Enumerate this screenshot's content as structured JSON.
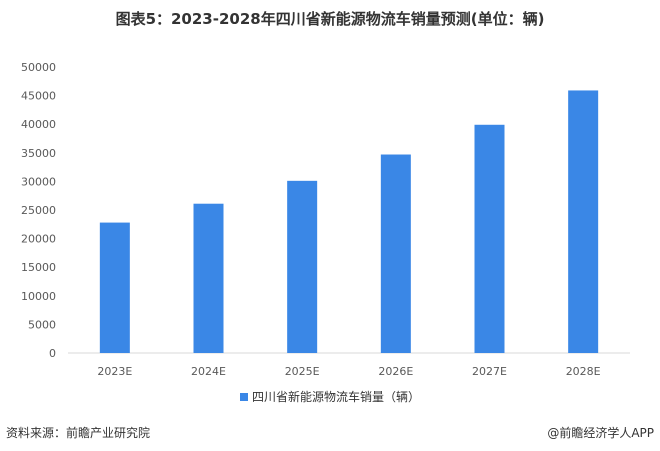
{
  "chart_data": {
    "type": "bar",
    "title": "图表5：2023-2028年四川省新能源物流车销量预测(单位：辆)",
    "categories": [
      "2023E",
      "2024E",
      "2025E",
      "2026E",
      "2027E",
      "2028E"
    ],
    "series": [
      {
        "name": "四川省新能源物流车销量（辆）",
        "values": [
          22800,
          26100,
          30100,
          34700,
          39900,
          45900
        ],
        "color": "#3a87e6"
      }
    ],
    "yticks": [
      "0",
      "5000",
      "10000",
      "15000",
      "20000",
      "25000",
      "30000",
      "35000",
      "40000",
      "45000",
      "50000"
    ],
    "ylim": [
      0,
      50000
    ],
    "grid": false,
    "legend_position": "bottom"
  },
  "footer": {
    "source": "资料来源：前瞻产业研究院",
    "publisher": "@前瞻经济学人APP"
  },
  "colors": {
    "axis": "#d9d9d9",
    "text": "#595959"
  }
}
